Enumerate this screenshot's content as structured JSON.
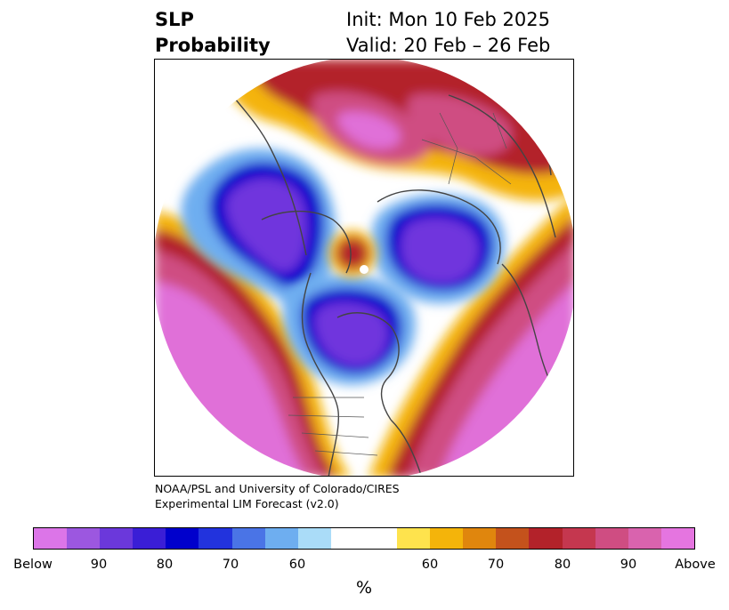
{
  "title": {
    "variable": "SLP",
    "product": "Probability",
    "init": "Init: Mon 10 Feb 2025",
    "valid": "Valid: 20 Feb – 26 Feb"
  },
  "credit": {
    "line1": "NOAA/PSL and University of Colorado/CIRES",
    "line2": "Experimental LIM Forecast (v2.0)"
  },
  "colorbar": {
    "unit": "%",
    "colors": [
      "#dc75e8",
      "#9c57e0",
      "#6b38db",
      "#3a1ed6",
      "#0000cc",
      "#2233dd",
      "#4a74e6",
      "#6eaef0",
      "#aadcf8",
      "#ffffff",
      "#ffffff",
      "#fee34d",
      "#f4b40a",
      "#e0860d",
      "#c4521c",
      "#b3222a",
      "#c5374f",
      "#cf4d82",
      "#d963ae",
      "#e575e0"
    ],
    "ticks": [
      "Below",
      "90",
      "80",
      "70",
      "60",
      "60",
      "70",
      "80",
      "90",
      "Above"
    ]
  },
  "map": {
    "projection": "north-polar-stereographic",
    "colors": {
      "below_strong": "#7035dd",
      "below_core": "#1a10d0",
      "below_light": "#6eaef0",
      "above_weak": "#f4b40a",
      "above_mid": "#b3222a",
      "above_strong": "#e070d8",
      "coast": "#444444"
    }
  }
}
